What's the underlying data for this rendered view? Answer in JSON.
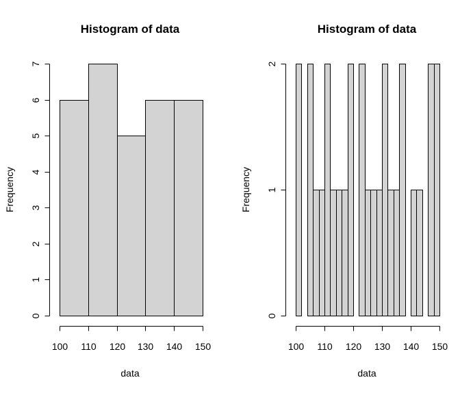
{
  "chart_data": [
    {
      "type": "bar",
      "title": "Histogram of data",
      "xlabel": "data",
      "ylabel": "Frequency",
      "bins": [
        [
          100,
          110
        ],
        [
          110,
          120
        ],
        [
          120,
          130
        ],
        [
          130,
          140
        ],
        [
          140,
          150
        ]
      ],
      "values": [
        6,
        7,
        5,
        6,
        6
      ],
      "xlim": [
        100,
        150
      ],
      "ylim": [
        0,
        7
      ],
      "xticks": [
        100,
        110,
        120,
        130,
        140,
        150
      ],
      "yticks": [
        0,
        1,
        2,
        3,
        4,
        5,
        6,
        7
      ],
      "bar_color": "#d3d3d3",
      "grid": false,
      "legend": "none"
    },
    {
      "type": "bar",
      "title": "Histogram of data",
      "xlabel": "data",
      "ylabel": "Frequency",
      "bins": [
        [
          100,
          102
        ],
        [
          102,
          104
        ],
        [
          104,
          106
        ],
        [
          106,
          108
        ],
        [
          108,
          110
        ],
        [
          110,
          112
        ],
        [
          112,
          114
        ],
        [
          114,
          116
        ],
        [
          116,
          118
        ],
        [
          118,
          120
        ],
        [
          120,
          122
        ],
        [
          122,
          124
        ],
        [
          124,
          126
        ],
        [
          126,
          128
        ],
        [
          128,
          130
        ],
        [
          130,
          132
        ],
        [
          132,
          134
        ],
        [
          134,
          136
        ],
        [
          136,
          138
        ],
        [
          138,
          140
        ],
        [
          140,
          142
        ],
        [
          142,
          144
        ],
        [
          144,
          146
        ],
        [
          146,
          148
        ],
        [
          148,
          150
        ]
      ],
      "values": [
        2,
        0,
        2,
        1,
        1,
        2,
        1,
        1,
        1,
        2,
        0,
        2,
        1,
        1,
        1,
        2,
        1,
        1,
        2,
        0,
        1,
        1,
        0,
        2,
        2
      ],
      "xlim": [
        100,
        150
      ],
      "ylim": [
        0,
        2
      ],
      "xticks": [
        100,
        110,
        120,
        130,
        140,
        150
      ],
      "yticks": [
        0,
        1,
        2
      ],
      "bar_color": "#d3d3d3",
      "grid": false,
      "legend": "none"
    }
  ]
}
